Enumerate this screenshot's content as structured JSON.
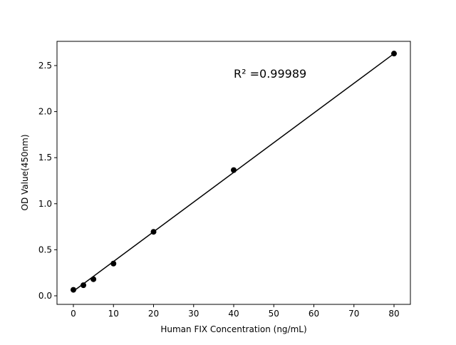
{
  "chart_data": {
    "type": "scatter",
    "x_label": "Human FIX Concentration (ng/mL)",
    "y_label": "OD Value(450nm)",
    "annotation": "R² =0.99989",
    "x": [
      0,
      2.5,
      5,
      10,
      20,
      40,
      80
    ],
    "values": [
      0.065,
      0.115,
      0.18,
      0.35,
      0.695,
      1.365,
      2.63
    ],
    "color": "#000000",
    "fit": {
      "x": [
        0,
        80
      ],
      "values": [
        0.05,
        2.63
      ]
    },
    "xlim": [
      -4.09,
      84.09
    ],
    "ylim": [
      -0.093,
      2.763
    ],
    "xticks": [
      0,
      10,
      20,
      30,
      40,
      50,
      60,
      70,
      80
    ],
    "yticks": [
      {
        "value": 0,
        "label": "0.0"
      },
      {
        "value": 0.5,
        "label": "0.5"
      },
      {
        "value": 1,
        "label": "1.0"
      },
      {
        "value": 1.5,
        "label": "1.5"
      },
      {
        "value": 2,
        "label": "2.0"
      },
      {
        "value": 2.5,
        "label": "2.5"
      }
    ]
  }
}
